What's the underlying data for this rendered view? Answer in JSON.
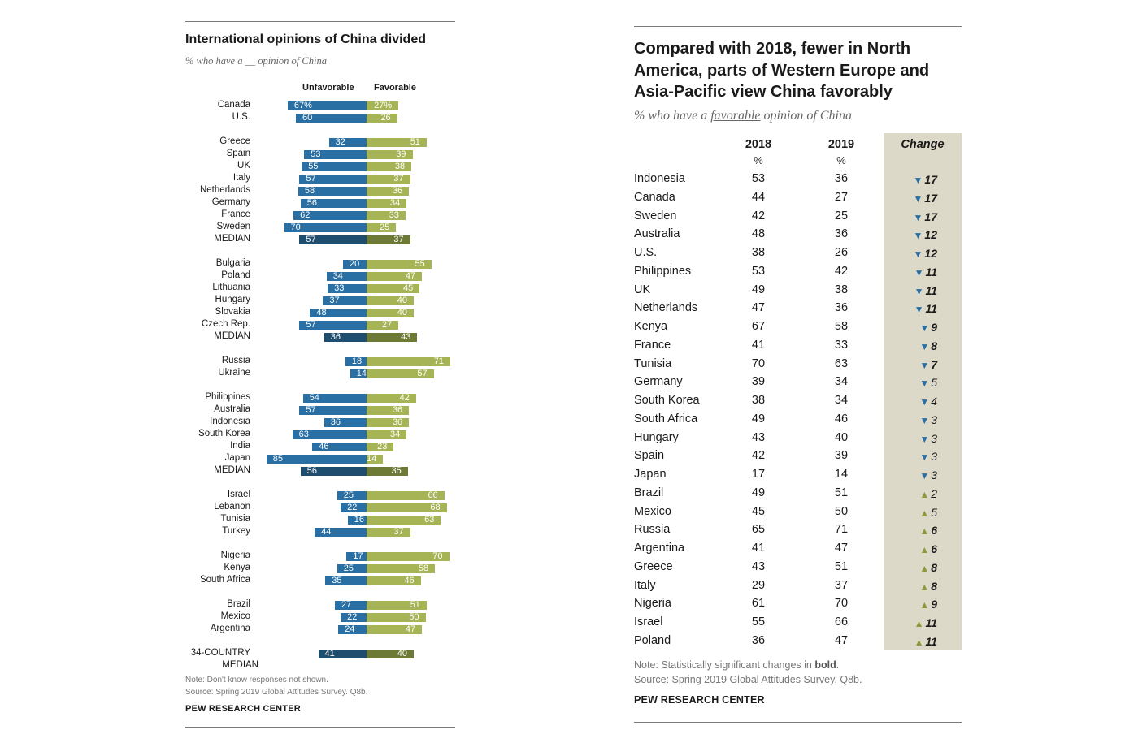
{
  "left_chart": {
    "title": "International opinions of China divided",
    "subtitle": "% who have a __ opinion of China",
    "col_unfavorable": "Unfavorable",
    "col_favorable": "Favorable",
    "note": "Note: Don't know responses not shown.",
    "source": "Source: Spring 2019 Global Attitudes Survey. Q8b.",
    "brand": "PEW RESEARCH CENTER"
  },
  "right_table": {
    "title": "Compared with 2018, fewer in North America, parts of Western Europe and Asia-Pacific view China favorably",
    "subtitle_pre": "% who have a ",
    "subtitle_u": "favorable",
    "subtitle_post": " opinion of China",
    "col_2018": "2018",
    "col_2019": "2019",
    "col_change": "Change",
    "unit": "%",
    "note_pre": "Note: Statistically significant changes in ",
    "note_bold": "bold",
    "note_post": ".",
    "source": "Source: Spring 2019 Global Attitudes Survey. Q8b.",
    "brand": "PEW RESEARCH CENTER"
  },
  "chart_data": [
    {
      "type": "bar",
      "title": "International opinions of China divided",
      "subtitle": "% who have a __ opinion of China",
      "series": [
        {
          "name": "Unfavorable",
          "color": "#2a6fa3"
        },
        {
          "name": "Favorable",
          "color": "#a6b456"
        }
      ],
      "rows": [
        {
          "label": "Canada",
          "unfav": 67,
          "fav": 27,
          "unfav_label": "67%",
          "fav_label": "27%",
          "gap_before": false
        },
        {
          "label": "U.S.",
          "unfav": 60,
          "fav": 26,
          "unfav_label": "60",
          "fav_label": "26"
        },
        {
          "label": "Greece",
          "unfav": 32,
          "fav": 51,
          "unfav_label": "32",
          "fav_label": "51",
          "gap_before": true
        },
        {
          "label": "Spain",
          "unfav": 53,
          "fav": 39,
          "unfav_label": "53",
          "fav_label": "39"
        },
        {
          "label": "UK",
          "unfav": 55,
          "fav": 38,
          "unfav_label": "55",
          "fav_label": "38"
        },
        {
          "label": "Italy",
          "unfav": 57,
          "fav": 37,
          "unfav_label": "57",
          "fav_label": "37"
        },
        {
          "label": "Netherlands",
          "unfav": 58,
          "fav": 36,
          "unfav_label": "58",
          "fav_label": "36"
        },
        {
          "label": "Germany",
          "unfav": 56,
          "fav": 34,
          "unfav_label": "56",
          "fav_label": "34"
        },
        {
          "label": "France",
          "unfav": 62,
          "fav": 33,
          "unfav_label": "62",
          "fav_label": "33"
        },
        {
          "label": "Sweden",
          "unfav": 70,
          "fav": 25,
          "unfav_label": "70",
          "fav_label": "25"
        },
        {
          "label": "MEDIAN",
          "unfav": 57,
          "fav": 37,
          "unfav_label": "57",
          "fav_label": "37",
          "median": true
        },
        {
          "label": "Bulgaria",
          "unfav": 20,
          "fav": 55,
          "unfav_label": "20",
          "fav_label": "55",
          "gap_before": true
        },
        {
          "label": "Poland",
          "unfav": 34,
          "fav": 47,
          "unfav_label": "34",
          "fav_label": "47"
        },
        {
          "label": "Lithuania",
          "unfav": 33,
          "fav": 45,
          "unfav_label": "33",
          "fav_label": "45"
        },
        {
          "label": "Hungary",
          "unfav": 37,
          "fav": 40,
          "unfav_label": "37",
          "fav_label": "40"
        },
        {
          "label": "Slovakia",
          "unfav": 48,
          "fav": 40,
          "unfav_label": "48",
          "fav_label": "40"
        },
        {
          "label": "Czech Rep.",
          "unfav": 57,
          "fav": 27,
          "unfav_label": "57",
          "fav_label": "27"
        },
        {
          "label": "MEDIAN",
          "unfav": 36,
          "fav": 43,
          "unfav_label": "36",
          "fav_label": "43",
          "median": true
        },
        {
          "label": "Russia",
          "unfav": 18,
          "fav": 71,
          "unfav_label": "18",
          "fav_label": "71",
          "gap_before": true
        },
        {
          "label": "Ukraine",
          "unfav": 14,
          "fav": 57,
          "unfav_label": "14",
          "fav_label": "57"
        },
        {
          "label": "Philippines",
          "unfav": 54,
          "fav": 42,
          "unfav_label": "54",
          "fav_label": "42",
          "gap_before": true
        },
        {
          "label": "Australia",
          "unfav": 57,
          "fav": 36,
          "unfav_label": "57",
          "fav_label": "36"
        },
        {
          "label": "Indonesia",
          "unfav": 36,
          "fav": 36,
          "unfav_label": "36",
          "fav_label": "36"
        },
        {
          "label": "South Korea",
          "unfav": 63,
          "fav": 34,
          "unfav_label": "63",
          "fav_label": "34"
        },
        {
          "label": "India",
          "unfav": 46,
          "fav": 23,
          "unfav_label": "46",
          "fav_label": "23"
        },
        {
          "label": "Japan",
          "unfav": 85,
          "fav": 14,
          "unfav_label": "85",
          "fav_label": "14"
        },
        {
          "label": "MEDIAN",
          "unfav": 56,
          "fav": 35,
          "unfav_label": "56",
          "fav_label": "35",
          "median": true
        },
        {
          "label": "Israel",
          "unfav": 25,
          "fav": 66,
          "unfav_label": "25",
          "fav_label": "66",
          "gap_before": true
        },
        {
          "label": "Lebanon",
          "unfav": 22,
          "fav": 68,
          "unfav_label": "22",
          "fav_label": "68"
        },
        {
          "label": "Tunisia",
          "unfav": 16,
          "fav": 63,
          "unfav_label": "16",
          "fav_label": "63"
        },
        {
          "label": "Turkey",
          "unfav": 44,
          "fav": 37,
          "unfav_label": "44",
          "fav_label": "37"
        },
        {
          "label": "Nigeria",
          "unfav": 17,
          "fav": 70,
          "unfav_label": "17",
          "fav_label": "70",
          "gap_before": true
        },
        {
          "label": "Kenya",
          "unfav": 25,
          "fav": 58,
          "unfav_label": "25",
          "fav_label": "58"
        },
        {
          "label": "South Africa",
          "unfav": 35,
          "fav": 46,
          "unfav_label": "35",
          "fav_label": "46"
        },
        {
          "label": "Brazil",
          "unfav": 27,
          "fav": 51,
          "unfav_label": "27",
          "fav_label": "51",
          "gap_before": true
        },
        {
          "label": "Mexico",
          "unfav": 22,
          "fav": 50,
          "unfav_label": "22",
          "fav_label": "50"
        },
        {
          "label": "Argentina",
          "unfav": 24,
          "fav": 47,
          "unfav_label": "24",
          "fav_label": "47"
        },
        {
          "label": "34-COUNTRY",
          "label2": "MEDIAN",
          "unfav": 41,
          "fav": 40,
          "unfav_label": "41",
          "fav_label": "40",
          "median": true,
          "gap_before": true
        }
      ]
    },
    {
      "type": "table",
      "title": "Compared with 2018, fewer in North America, parts of Western Europe and Asia-Pacific view China favorably",
      "columns": [
        "2018",
        "2019",
        "Change"
      ],
      "rows": [
        {
          "country": "Indonesia",
          "y2018": 53,
          "y2019": 36,
          "change": 17,
          "dir": "down",
          "sig": true
        },
        {
          "country": "Canada",
          "y2018": 44,
          "y2019": 27,
          "change": 17,
          "dir": "down",
          "sig": true
        },
        {
          "country": "Sweden",
          "y2018": 42,
          "y2019": 25,
          "change": 17,
          "dir": "down",
          "sig": true
        },
        {
          "country": "Australia",
          "y2018": 48,
          "y2019": 36,
          "change": 12,
          "dir": "down",
          "sig": true
        },
        {
          "country": "U.S.",
          "y2018": 38,
          "y2019": 26,
          "change": 12,
          "dir": "down",
          "sig": true
        },
        {
          "country": "Philippines",
          "y2018": 53,
          "y2019": 42,
          "change": 11,
          "dir": "down",
          "sig": true
        },
        {
          "country": "UK",
          "y2018": 49,
          "y2019": 38,
          "change": 11,
          "dir": "down",
          "sig": true
        },
        {
          "country": "Netherlands",
          "y2018": 47,
          "y2019": 36,
          "change": 11,
          "dir": "down",
          "sig": true
        },
        {
          "country": "Kenya",
          "y2018": 67,
          "y2019": 58,
          "change": 9,
          "dir": "down",
          "sig": true
        },
        {
          "country": "France",
          "y2018": 41,
          "y2019": 33,
          "change": 8,
          "dir": "down",
          "sig": true
        },
        {
          "country": "Tunisia",
          "y2018": 70,
          "y2019": 63,
          "change": 7,
          "dir": "down",
          "sig": true
        },
        {
          "country": "Germany",
          "y2018": 39,
          "y2019": 34,
          "change": 5,
          "dir": "down",
          "sig": false
        },
        {
          "country": "South Korea",
          "y2018": 38,
          "y2019": 34,
          "change": 4,
          "dir": "down",
          "sig": false
        },
        {
          "country": "South Africa",
          "y2018": 49,
          "y2019": 46,
          "change": 3,
          "dir": "down",
          "sig": false
        },
        {
          "country": "Hungary",
          "y2018": 43,
          "y2019": 40,
          "change": 3,
          "dir": "down",
          "sig": false
        },
        {
          "country": "Spain",
          "y2018": 42,
          "y2019": 39,
          "change": 3,
          "dir": "down",
          "sig": false
        },
        {
          "country": "Japan",
          "y2018": 17,
          "y2019": 14,
          "change": 3,
          "dir": "down",
          "sig": false
        },
        {
          "country": "Brazil",
          "y2018": 49,
          "y2019": 51,
          "change": 2,
          "dir": "up",
          "sig": false
        },
        {
          "country": "Mexico",
          "y2018": 45,
          "y2019": 50,
          "change": 5,
          "dir": "up",
          "sig": false
        },
        {
          "country": "Russia",
          "y2018": 65,
          "y2019": 71,
          "change": 6,
          "dir": "up",
          "sig": true
        },
        {
          "country": "Argentina",
          "y2018": 41,
          "y2019": 47,
          "change": 6,
          "dir": "up",
          "sig": true
        },
        {
          "country": "Greece",
          "y2018": 43,
          "y2019": 51,
          "change": 8,
          "dir": "up",
          "sig": true
        },
        {
          "country": "Italy",
          "y2018": 29,
          "y2019": 37,
          "change": 8,
          "dir": "up",
          "sig": true
        },
        {
          "country": "Nigeria",
          "y2018": 61,
          "y2019": 70,
          "change": 9,
          "dir": "up",
          "sig": true
        },
        {
          "country": "Israel",
          "y2018": 55,
          "y2019": 66,
          "change": 11,
          "dir": "up",
          "sig": true
        },
        {
          "country": "Poland",
          "y2018": 36,
          "y2019": 47,
          "change": 11,
          "dir": "up",
          "sig": true
        }
      ]
    }
  ]
}
